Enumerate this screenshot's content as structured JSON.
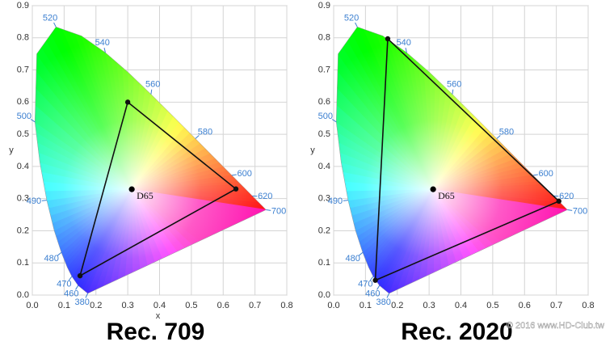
{
  "chart_data": [
    {
      "type": "gamut",
      "title": "Rec. 709",
      "xlabel": "x",
      "ylabel": "y",
      "xlim": [
        0,
        0.8
      ],
      "ylim": [
        0,
        0.9
      ],
      "xticks": [
        {
          "value": 0,
          "label": "0.0"
        },
        0.1,
        0.2,
        0.3,
        0.4,
        0.5,
        0.6,
        0.7,
        0.8
      ],
      "yticks": [
        {
          "value": 0,
          "label": "0.0"
        },
        0.1,
        0.2,
        0.3,
        0.4,
        0.5,
        0.6,
        0.7,
        0.8,
        0.9
      ],
      "grid": true,
      "locus": {
        "labels": [
          "380",
          "460",
          "470",
          null,
          "480",
          null,
          "490",
          null,
          "500",
          null,
          "520",
          null,
          "540",
          null,
          "560",
          null,
          "580",
          null,
          "600",
          null,
          "620",
          "700"
        ],
        "x": [
          0.1741,
          0.144,
          0.1241,
          0.1096,
          0.0913,
          0.0687,
          0.0454,
          0.0235,
          0.0082,
          0.0139,
          0.0743,
          0.1547,
          0.2296,
          0.3016,
          0.3731,
          0.4441,
          0.5125,
          0.5752,
          0.627,
          0.6658,
          0.6915,
          0.7347
        ],
        "y": [
          0.005,
          0.0297,
          0.0578,
          0.0868,
          0.1327,
          0.2007,
          0.295,
          0.4127,
          0.5384,
          0.7502,
          0.8338,
          0.8059,
          0.7543,
          0.6923,
          0.6245,
          0.5547,
          0.4866,
          0.4242,
          0.3725,
          0.334,
          0.3083,
          0.2653
        ]
      },
      "gamut": {
        "x": [
          0.64,
          0.3,
          0.15
        ],
        "y": [
          0.33,
          0.6,
          0.06
        ],
        "color": "#111111"
      },
      "white_point": {
        "label": "D65",
        "x": 0.3127,
        "y": 0.329
      }
    },
    {
      "type": "gamut",
      "title": "Rec. 2020",
      "ylabel": "y",
      "xlim": [
        0,
        0.8
      ],
      "ylim": [
        0,
        0.9
      ],
      "xticks": [
        {
          "value": 0,
          "label": "0.0"
        },
        0.1,
        0.2,
        0.3,
        0.4,
        0.5,
        0.6,
        0.7,
        0.8
      ],
      "yticks": [
        {
          "value": 0,
          "label": "0.0"
        },
        0.1,
        0.2,
        0.3,
        0.4,
        0.5,
        0.6,
        0.7,
        0.8,
        0.9
      ],
      "grid": true,
      "locus": {
        "labels": [
          "380",
          "460",
          "470",
          null,
          "480",
          null,
          "490",
          null,
          "500",
          null,
          "520",
          null,
          "540",
          null,
          "560",
          null,
          "580",
          null,
          "600",
          null,
          "620",
          "700"
        ],
        "x": [
          0.1741,
          0.144,
          0.1241,
          0.1096,
          0.0913,
          0.0687,
          0.0454,
          0.0235,
          0.0082,
          0.0139,
          0.0743,
          0.1547,
          0.2296,
          0.3016,
          0.3731,
          0.4441,
          0.5125,
          0.5752,
          0.627,
          0.6658,
          0.6915,
          0.7347
        ],
        "y": [
          0.005,
          0.0297,
          0.0578,
          0.0868,
          0.1327,
          0.2007,
          0.295,
          0.4127,
          0.5384,
          0.7502,
          0.8338,
          0.8059,
          0.7543,
          0.6923,
          0.6245,
          0.5547,
          0.4866,
          0.4242,
          0.3725,
          0.334,
          0.3083,
          0.2653
        ]
      },
      "gamut": {
        "x": [
          0.708,
          0.17,
          0.131
        ],
        "y": [
          0.292,
          0.797,
          0.046
        ],
        "color": "#111111"
      },
      "white_point": {
        "label": "D65",
        "x": 0.3127,
        "y": 0.329
      }
    }
  ],
  "watermark": "© 2016 www.HD-Club.tw"
}
